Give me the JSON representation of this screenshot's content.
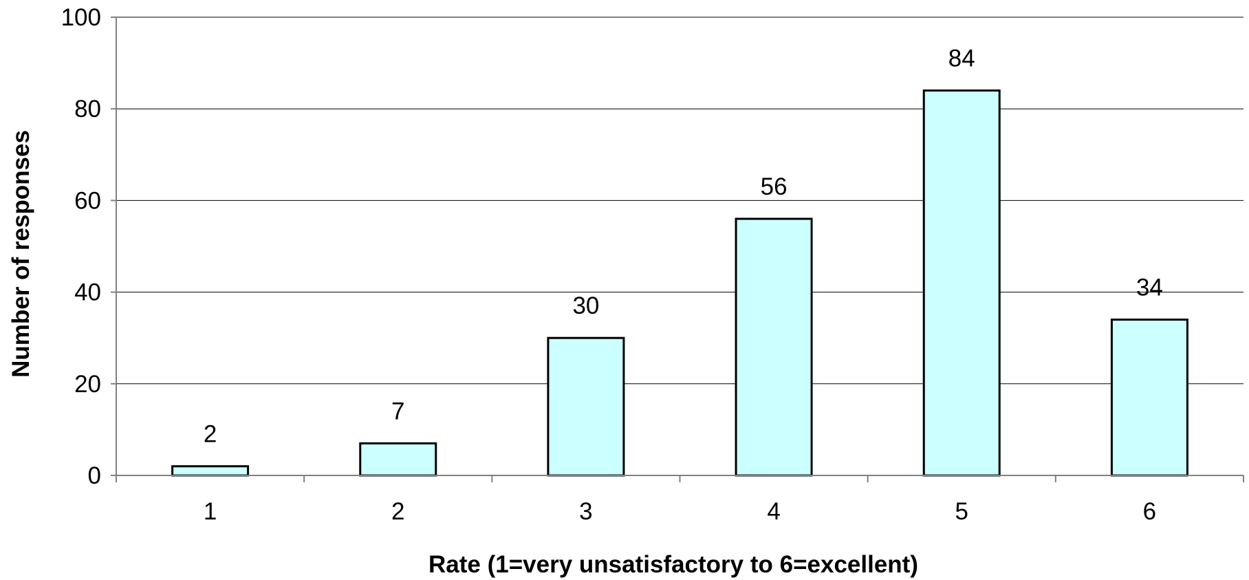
{
  "chart_data": {
    "type": "bar",
    "title": "",
    "xlabel": "Rate (1=very unsatisfactory to 6=excellent)",
    "ylabel": "Number of responses",
    "categories": [
      "1",
      "2",
      "3",
      "4",
      "5",
      "6"
    ],
    "values": [
      2,
      7,
      30,
      56,
      84,
      34
    ],
    "data_labels": [
      "2",
      "7",
      "30",
      "56",
      "84",
      "34"
    ],
    "ylim": [
      0,
      100
    ],
    "yticks": [
      0,
      20,
      40,
      60,
      80,
      100
    ],
    "ytick_labels": [
      "0",
      "20",
      "40",
      "60",
      "80",
      "100"
    ],
    "grid": true,
    "legend": "none",
    "colors": {
      "bar_fill": "#ccffff",
      "bar_stroke": "#000000",
      "grid": "#000000",
      "axis": "#808080"
    }
  }
}
